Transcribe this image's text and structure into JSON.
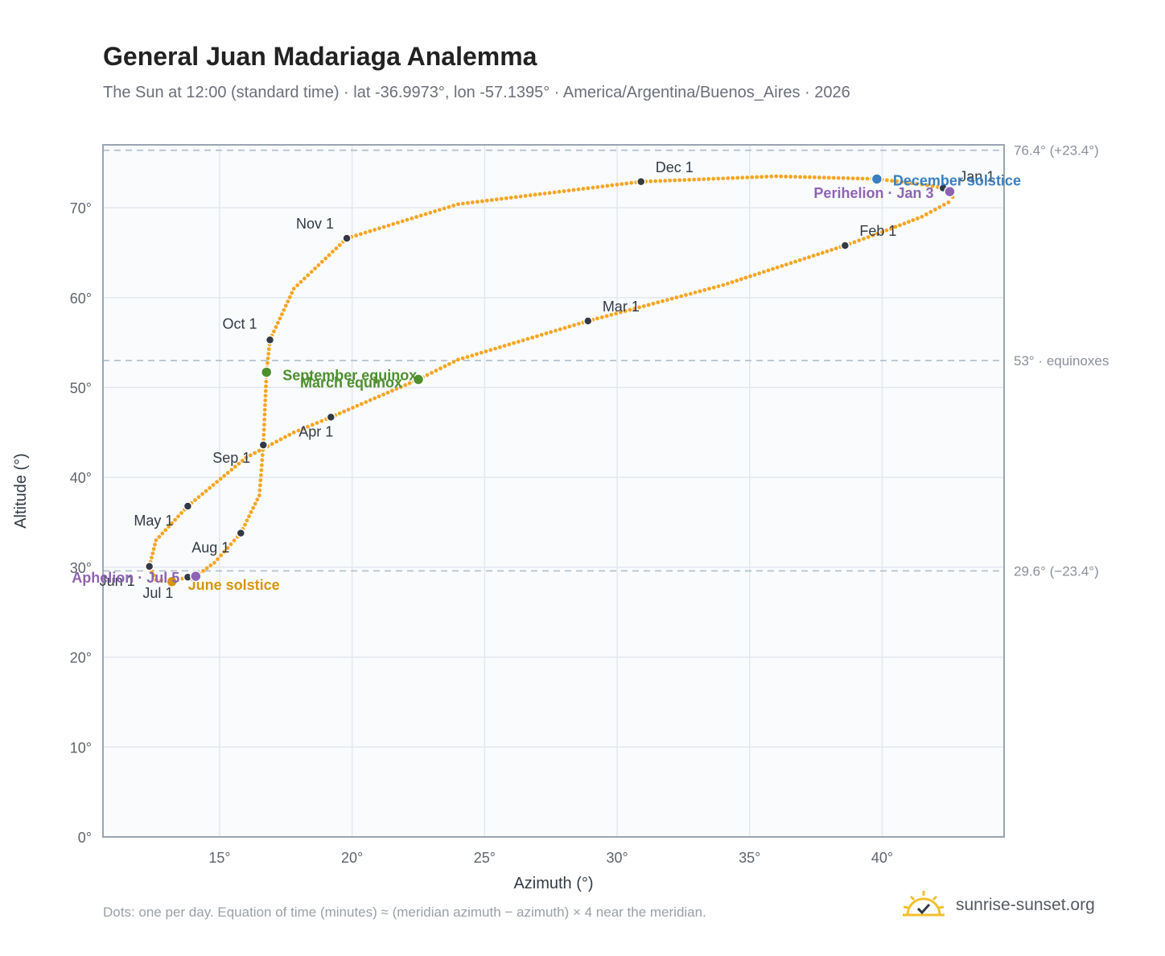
{
  "header": {
    "title": "General Juan Madariaga Analemma",
    "subtitle": "The Sun at 12:00 (standard time) · lat -36.9973°, lon -57.1395° · America/Argentina/Buenos_Aires · 2026"
  },
  "footer": {
    "note": "Dots: one per day. Equation of time (minutes) ≈ (meridian azimuth − azimuth) × 4 near the meridian.",
    "brand": "sunrise-sunset.org",
    "brand_icon": "sun-check-icon"
  },
  "colors": {
    "curve": "#f5a623",
    "month_marker": "#333a44",
    "equinox": "#4e8f2e",
    "june_solstice": "#d4960e",
    "december_solstice": "#3a7ebf",
    "apsis": "#8e63b5",
    "plot_bg": "#f9fbfd",
    "grid": "#e3e8ee",
    "reference_line": "#b0bec8"
  },
  "chart_data": {
    "type": "scatter",
    "xlabel": "Azimuth (°)",
    "ylabel": "Altitude (°)",
    "xlim": [
      10.6,
      44.6
    ],
    "ylim": [
      0,
      77
    ],
    "x_ticks": [
      15,
      20,
      25,
      30,
      35,
      40
    ],
    "x_tick_labels": [
      "15°",
      "20°",
      "25°",
      "30°",
      "35°",
      "40°"
    ],
    "y_ticks": [
      0,
      10,
      20,
      30,
      40,
      50,
      60,
      70
    ],
    "y_tick_labels": [
      "0°",
      "10°",
      "20°",
      "30°",
      "40°",
      "50°",
      "60°",
      "70°"
    ],
    "grid": true,
    "series": [
      {
        "points": [
          [
            42.3,
            72.2
          ],
          [
            42.55,
            71.8
          ],
          [
            42.66,
            71.2
          ],
          [
            42.5,
            70.6
          ],
          [
            41.5,
            69.0
          ],
          [
            40.0,
            67.3
          ],
          [
            38.6,
            65.8
          ],
          [
            34.0,
            61.4
          ],
          [
            28.9,
            57.4
          ],
          [
            24.0,
            53.1
          ],
          [
            22.5,
            50.9
          ],
          [
            19.2,
            46.7
          ],
          [
            17.8,
            45.0
          ],
          [
            16.0,
            42.2
          ],
          [
            13.8,
            36.8
          ],
          [
            12.6,
            33.0
          ],
          [
            12.35,
            30.1
          ],
          [
            12.6,
            28.6
          ],
          [
            13.2,
            28.4
          ],
          [
            13.8,
            28.9
          ],
          [
            14.1,
            29.0
          ],
          [
            14.8,
            30.5
          ],
          [
            15.8,
            33.8
          ],
          [
            16.5,
            38.0
          ],
          [
            16.65,
            43.6
          ],
          [
            16.7,
            47.0
          ],
          [
            16.77,
            51.7
          ],
          [
            16.9,
            55.3
          ],
          [
            17.8,
            61.0
          ],
          [
            19.8,
            66.6
          ],
          [
            24.0,
            70.4
          ],
          [
            30.9,
            72.9
          ],
          [
            36.0,
            73.5
          ],
          [
            39.8,
            73.2
          ],
          [
            41.5,
            72.6
          ],
          [
            42.3,
            72.2
          ]
        ]
      }
    ],
    "month_markers": [
      {
        "label": "Jan 1",
        "x": 42.3,
        "y": 72.2
      },
      {
        "label": "Feb 1",
        "x": 38.6,
        "y": 65.8
      },
      {
        "label": "Mar 1",
        "x": 28.9,
        "y": 57.4
      },
      {
        "label": "Apr 1",
        "x": 19.2,
        "y": 46.7
      },
      {
        "label": "May 1",
        "x": 13.8,
        "y": 36.8
      },
      {
        "label": "Jun 1",
        "x": 12.35,
        "y": 30.1
      },
      {
        "label": "Jul 1",
        "x": 13.8,
        "y": 28.9
      },
      {
        "label": "Aug 1",
        "x": 15.8,
        "y": 33.8
      },
      {
        "label": "Sep 1",
        "x": 16.65,
        "y": 43.6
      },
      {
        "label": "Oct 1",
        "x": 16.9,
        "y": 55.3
      },
      {
        "label": "Nov 1",
        "x": 19.8,
        "y": 66.6
      },
      {
        "label": "Dec 1",
        "x": 30.9,
        "y": 72.9
      }
    ],
    "events": [
      {
        "label": "March equinox",
        "x": 22.5,
        "y": 50.9,
        "color_key": "equinox"
      },
      {
        "label": "September equinox",
        "x": 16.77,
        "y": 51.7,
        "color_key": "equinox"
      },
      {
        "label": "June solstice",
        "x": 13.2,
        "y": 28.4,
        "color_key": "june_solstice"
      },
      {
        "label": "December solstice",
        "x": 39.8,
        "y": 73.2,
        "color_key": "december_solstice"
      },
      {
        "label": "Perihelion · Jan 3",
        "x": 42.55,
        "y": 71.8,
        "color_key": "apsis"
      },
      {
        "label": "Aphelion · Jul 5",
        "x": 14.1,
        "y": 29.0,
        "color_key": "apsis"
      }
    ],
    "reference_lines": [
      {
        "y": 76.4,
        "label": "76.4° (+23.4°)"
      },
      {
        "y": 53.0,
        "label": "53° · equinoxes"
      },
      {
        "y": 29.6,
        "label": "29.6° (−23.4°)"
      }
    ]
  }
}
